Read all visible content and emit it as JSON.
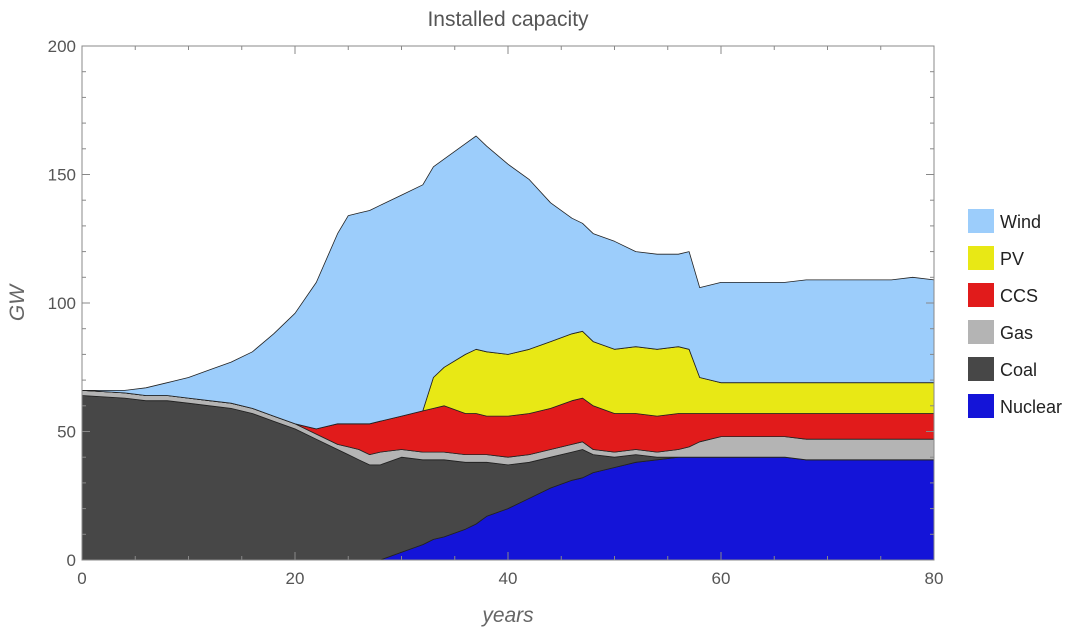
{
  "chart_data": {
    "type": "area",
    "stacked": true,
    "title": "Installed capacity",
    "xlabel": "years",
    "ylabel": "GW",
    "xlim": [
      0,
      80
    ],
    "ylim": [
      0,
      200
    ],
    "xticks": [
      0,
      20,
      40,
      60,
      80
    ],
    "yticks": [
      0,
      50,
      100,
      150,
      200
    ],
    "grid": false,
    "legend_position": "right",
    "x": [
      0,
      4,
      6,
      8,
      10,
      12,
      14,
      16,
      18,
      20,
      22,
      24,
      25,
      26,
      27,
      28,
      30,
      32,
      33,
      34,
      36,
      37,
      38,
      40,
      42,
      44,
      46,
      47,
      48,
      50,
      52,
      54,
      56,
      57,
      58,
      60,
      62,
      64,
      66,
      68,
      70,
      72,
      74,
      76,
      78,
      80
    ],
    "series": [
      {
        "name": "Nuclear",
        "color": "#1414d8",
        "values": [
          0,
          0,
          0,
          0,
          0,
          0,
          0,
          0,
          0,
          0,
          0,
          0,
          0,
          0,
          0,
          0,
          3,
          6,
          8,
          9,
          12,
          14,
          17,
          20,
          24,
          28,
          31,
          32,
          34,
          36,
          38,
          39,
          40,
          40,
          40,
          40,
          40,
          40,
          40,
          39,
          39,
          39,
          39,
          39,
          39,
          39
        ]
      },
      {
        "name": "Coal",
        "color": "#474747",
        "values": [
          64,
          63,
          62,
          62,
          61,
          60,
          59,
          57,
          54,
          51,
          47,
          43,
          41,
          39,
          37,
          37,
          37,
          33,
          31,
          30,
          26,
          24,
          21,
          17,
          14,
          12,
          11,
          11,
          7,
          4,
          3,
          1,
          0,
          0,
          0,
          0,
          0,
          0,
          0,
          0,
          0,
          0,
          0,
          0,
          0,
          0
        ]
      },
      {
        "name": "Gas",
        "color": "#b4b4b4",
        "values": [
          2,
          2,
          2,
          2,
          2,
          2,
          2,
          2,
          2,
          2,
          2,
          2,
          3,
          4,
          4,
          5,
          3,
          3,
          3,
          3,
          3,
          3,
          3,
          3,
          3,
          3,
          3,
          3,
          2,
          2,
          2,
          2,
          3,
          4,
          6,
          8,
          8,
          8,
          8,
          8,
          8,
          8,
          8,
          8,
          8,
          8
        ]
      },
      {
        "name": "CCS",
        "color": "#e11b1b",
        "values": [
          0,
          0,
          0,
          0,
          0,
          0,
          0,
          0,
          0,
          0,
          2,
          8,
          9,
          10,
          12,
          12,
          13,
          16,
          17,
          18,
          16,
          16,
          15,
          16,
          16,
          16,
          17,
          17,
          17,
          15,
          14,
          14,
          14,
          13,
          11,
          9,
          9,
          9,
          9,
          10,
          10,
          10,
          10,
          10,
          10,
          10
        ]
      },
      {
        "name": "PV",
        "color": "#e8e815",
        "values": [
          0,
          0,
          0,
          0,
          0,
          0,
          0,
          0,
          0,
          0,
          0,
          0,
          0,
          0,
          0,
          0,
          0,
          0,
          12,
          15,
          23,
          25,
          25,
          24,
          25,
          26,
          26,
          26,
          25,
          25,
          26,
          26,
          26,
          25,
          14,
          12,
          12,
          12,
          12,
          12,
          12,
          12,
          12,
          12,
          12,
          12
        ]
      },
      {
        "name": "Wind",
        "color": "#9ccdfb",
        "values": [
          0,
          1,
          3,
          5,
          8,
          12,
          16,
          22,
          32,
          43,
          57,
          74,
          81,
          82,
          83,
          84,
          86,
          88,
          82,
          81,
          82,
          83,
          80,
          74,
          66,
          54,
          45,
          42,
          42,
          42,
          37,
          37,
          36,
          38,
          35,
          39,
          39,
          39,
          39,
          40,
          40,
          40,
          40,
          40,
          41,
          40
        ]
      }
    ]
  }
}
